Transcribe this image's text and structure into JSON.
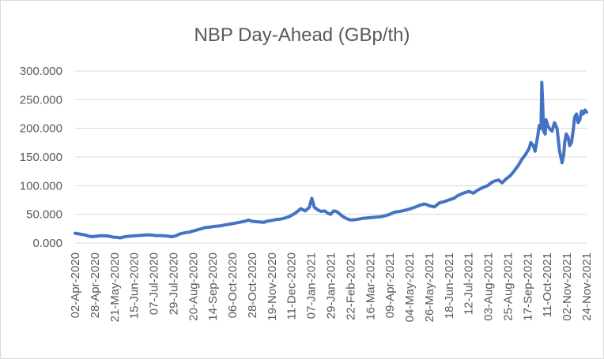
{
  "chart_data": {
    "type": "line",
    "title": "NBP Day-Ahead (GBp/th)",
    "xlabel": "",
    "ylabel": "",
    "ylim": [
      0,
      300
    ],
    "yticks": [
      "0.000",
      "50.000",
      "100.000",
      "150.000",
      "200.000",
      "250.000",
      "300.000"
    ],
    "grid": true,
    "legend": "none",
    "color": "#4472C4",
    "categories": [
      "02-Apr-2020",
      "28-Apr-2020",
      "21-May-2020",
      "15-Jun-2020",
      "07-Jul-2020",
      "29-Jul-2020",
      "20-Aug-2020",
      "14-Sep-2020",
      "06-Oct-2020",
      "28-Oct-2020",
      "19-Nov-2020",
      "11-Dec-2020",
      "07-Jan-2021",
      "29-Jan-2021",
      "22-Feb-2021",
      "16-Mar-2021",
      "09-Apr-2021",
      "04-May-2021",
      "26-May-2021",
      "18-Jun-2021",
      "12-Jul-2021",
      "03-Aug-2021",
      "25-Aug-2021",
      "17-Sep-2021",
      "11-Oct-2021",
      "02-Nov-2021",
      "24-Nov-2021"
    ],
    "x": [
      "2020-04-02",
      "2020-04-06",
      "2020-04-10",
      "2020-04-14",
      "2020-04-18",
      "2020-04-22",
      "2020-04-28",
      "2020-05-04",
      "2020-05-12",
      "2020-05-18",
      "2020-05-21",
      "2020-05-25",
      "2020-05-31",
      "2020-06-06",
      "2020-06-15",
      "2020-06-25",
      "2020-07-01",
      "2020-07-07",
      "2020-07-14",
      "2020-07-21",
      "2020-07-25",
      "2020-07-29",
      "2020-08-04",
      "2020-08-10",
      "2020-08-15",
      "2020-08-20",
      "2020-08-27",
      "2020-09-03",
      "2020-09-09",
      "2020-09-14",
      "2020-09-21",
      "2020-09-28",
      "2020-10-02",
      "2020-10-06",
      "2020-10-13",
      "2020-10-20",
      "2020-10-24",
      "2020-10-28",
      "2020-11-04",
      "2020-11-11",
      "2020-11-15",
      "2020-11-19",
      "2020-11-26",
      "2020-12-02",
      "2020-12-07",
      "2020-12-11",
      "2020-12-16",
      "2020-12-21",
      "2020-12-25",
      "2020-12-30",
      "2021-01-04",
      "2021-01-07",
      "2021-01-10",
      "2021-01-14",
      "2021-01-18",
      "2021-01-22",
      "2021-01-26",
      "2021-01-29",
      "2021-02-02",
      "2021-02-05",
      "2021-02-08",
      "2021-02-11",
      "2021-02-14",
      "2021-02-18",
      "2021-02-22",
      "2021-03-01",
      "2021-03-08",
      "2021-03-16",
      "2021-03-23",
      "2021-03-30",
      "2021-04-05",
      "2021-04-09",
      "2021-04-15",
      "2021-04-21",
      "2021-04-27",
      "2021-05-04",
      "2021-05-10",
      "2021-05-15",
      "2021-05-20",
      "2021-05-23",
      "2021-05-26",
      "2021-06-01",
      "2021-06-07",
      "2021-06-12",
      "2021-06-18",
      "2021-06-24",
      "2021-06-28",
      "2021-07-02",
      "2021-07-07",
      "2021-07-12",
      "2021-07-17",
      "2021-07-22",
      "2021-07-27",
      "2021-08-03",
      "2021-08-07",
      "2021-08-11",
      "2021-08-16",
      "2021-08-20",
      "2021-08-25",
      "2021-08-30",
      "2021-09-03",
      "2021-09-08",
      "2021-09-12",
      "2021-09-17",
      "2021-09-21",
      "2021-09-23",
      "2021-09-26",
      "2021-09-28",
      "2021-10-01",
      "2021-10-03",
      "2021-10-05",
      "2021-10-06",
      "2021-10-07",
      "2021-10-08",
      "2021-10-10",
      "2021-10-11",
      "2021-10-13",
      "2021-10-15",
      "2021-10-18",
      "2021-10-21",
      "2021-10-24",
      "2021-10-27",
      "2021-10-30",
      "2021-11-01",
      "2021-11-02",
      "2021-11-04",
      "2021-11-06",
      "2021-11-08",
      "2021-11-10",
      "2021-11-12",
      "2021-11-14",
      "2021-11-16",
      "2021-11-18",
      "2021-11-20",
      "2021-11-22",
      "2021-11-24",
      "2021-11-26",
      "2021-11-28"
    ],
    "values": [
      17,
      16,
      15,
      14,
      12,
      11,
      12,
      13,
      12,
      10,
      10,
      9,
      11,
      12,
      13,
      14,
      14,
      13,
      13,
      12,
      11,
      12,
      16,
      18,
      19,
      21,
      24,
      27,
      28,
      29,
      30,
      32,
      33,
      34,
      36,
      38,
      40,
      38,
      37,
      36,
      38,
      39,
      41,
      42,
      44,
      46,
      50,
      55,
      60,
      56,
      62,
      78,
      62,
      58,
      55,
      56,
      52,
      50,
      56,
      55,
      52,
      48,
      45,
      42,
      40,
      41,
      43,
      44,
      45,
      46,
      48,
      50,
      54,
      55,
      57,
      60,
      63,
      66,
      68,
      67,
      65,
      63,
      70,
      72,
      75,
      78,
      82,
      85,
      88,
      90,
      87,
      92,
      96,
      100,
      105,
      108,
      110,
      105,
      112,
      118,
      125,
      135,
      145,
      155,
      165,
      175,
      170,
      160,
      185,
      205,
      200,
      280,
      245,
      195,
      190,
      215,
      205,
      200,
      195,
      210,
      200,
      160,
      140,
      155,
      175,
      190,
      185,
      170,
      175,
      195,
      220,
      225,
      210,
      215,
      230,
      225,
      232,
      228
    ]
  }
}
